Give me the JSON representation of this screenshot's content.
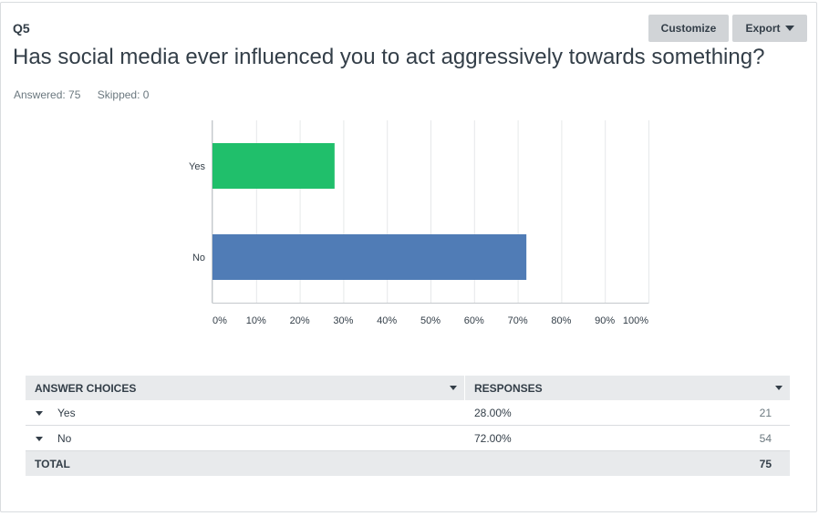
{
  "question": {
    "number": "Q5",
    "title": "Has social media ever influenced you to act aggressively towards something?",
    "answered": "Answered: 75",
    "skipped": "Skipped: 0"
  },
  "toolbar": {
    "customize_label": "Customize",
    "export_label": "Export"
  },
  "chart_data": {
    "type": "bar",
    "orientation": "horizontal",
    "categories": [
      "Yes",
      "No"
    ],
    "values": [
      28,
      72
    ],
    "colors": [
      "#20bf6b",
      "#507cb6"
    ],
    "xlim": [
      0,
      100
    ],
    "xticks": [
      "0%",
      "10%",
      "20%",
      "30%",
      "40%",
      "50%",
      "60%",
      "70%",
      "80%",
      "90%",
      "100%"
    ],
    "grid": true
  },
  "table": {
    "headers": {
      "choices": "ANSWER CHOICES",
      "responses": "RESPONSES"
    },
    "rows": [
      {
        "label": "Yes",
        "percent": "28.00%",
        "count": "21"
      },
      {
        "label": "No",
        "percent": "72.00%",
        "count": "54"
      }
    ],
    "total_label": "TOTAL",
    "total_value": "75"
  }
}
